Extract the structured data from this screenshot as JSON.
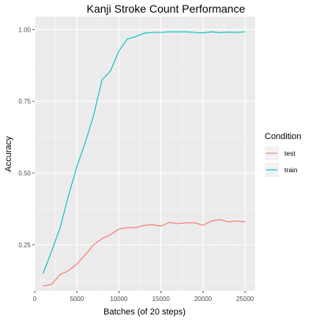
{
  "chart_data": {
    "type": "line",
    "title": "Kanji Stroke Count Performance",
    "xlabel": "Batches (of 20 steps)",
    "ylabel": "Accuracy",
    "xlim": [
      0,
      26200
    ],
    "ylim": [
      0.09,
      1.045
    ],
    "x_ticks": [
      0,
      5000,
      10000,
      15000,
      20000,
      25000
    ],
    "x_tick_labels": [
      "0",
      "5000",
      "10000",
      "15000",
      "20000",
      "25000"
    ],
    "y_ticks": [
      0.25,
      0.5,
      0.75,
      1.0
    ],
    "y_tick_labels": [
      "0.25",
      "0.50",
      "0.75",
      "1.00"
    ],
    "grid": true,
    "legend": {
      "title": "Condition",
      "position": "right"
    },
    "x": [
      1000,
      2000,
      3000,
      4000,
      5000,
      6000,
      7000,
      8000,
      9000,
      10000,
      11000,
      12000,
      13000,
      14000,
      15000,
      16000,
      17000,
      18000,
      19000,
      20000,
      21000,
      22000,
      23000,
      24000,
      25000
    ],
    "series": [
      {
        "name": "test",
        "color": "#F8766D",
        "values": [
          0.107,
          0.112,
          0.146,
          0.16,
          0.183,
          0.215,
          0.25,
          0.272,
          0.285,
          0.305,
          0.31,
          0.31,
          0.318,
          0.32,
          0.315,
          0.328,
          0.324,
          0.327,
          0.327,
          0.318,
          0.333,
          0.338,
          0.33,
          0.333,
          0.33
        ]
      },
      {
        "name": "train",
        "color": "#00BFC4",
        "values": [
          0.15,
          0.228,
          0.308,
          0.42,
          0.522,
          0.606,
          0.701,
          0.825,
          0.855,
          0.925,
          0.967,
          0.975,
          0.987,
          0.99,
          0.99,
          0.992,
          0.992,
          0.992,
          0.99,
          0.988,
          0.992,
          0.989,
          0.991,
          0.99,
          0.992
        ]
      }
    ]
  }
}
